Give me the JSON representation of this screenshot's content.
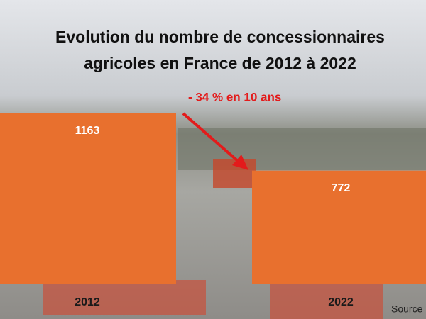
{
  "chart_data": {
    "type": "bar",
    "title": "Evolution du nombre de concessionnaires agricoles en France de 2012 à 2022",
    "categories": [
      "2012",
      "2022"
    ],
    "values": [
      1163,
      772
    ],
    "color": "#e8702e",
    "annotation": "- 34 % en 10 ans",
    "source": "Source"
  }
}
